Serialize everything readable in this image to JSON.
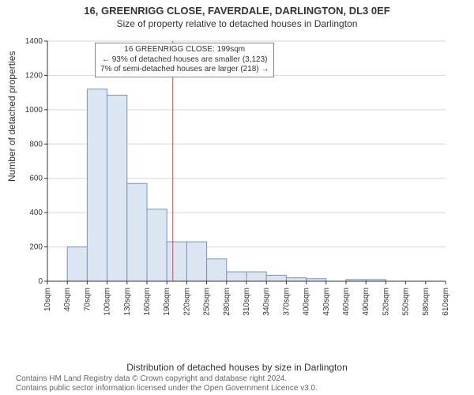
{
  "title_main": "16, GREENRIGG CLOSE, FAVERDALE, DARLINGTON, DL3 0EF",
  "title_sub": "Size of property relative to detached houses in Darlington",
  "y_axis_label": "Number of detached properties",
  "x_axis_label": "Distribution of detached houses by size in Darlington",
  "copyright_line1": "Contains HM Land Registry data © Crown copyright and database right 2024.",
  "copyright_line2": "Contains public sector information licensed under the Open Government Licence v3.0.",
  "chart": {
    "type": "histogram",
    "ylim": [
      0,
      1400
    ],
    "ytick_step": 200,
    "yticks": [
      0,
      200,
      400,
      600,
      800,
      1000,
      1200,
      1400
    ],
    "xtick_labels": [
      "10sqm",
      "40sqm",
      "70sqm",
      "100sqm",
      "130sqm",
      "160sqm",
      "190sqm",
      "220sqm",
      "250sqm",
      "280sqm",
      "310sqm",
      "340sqm",
      "370sqm",
      "400sqm",
      "430sqm",
      "460sqm",
      "490sqm",
      "520sqm",
      "550sqm",
      "580sqm",
      "610sqm"
    ],
    "xtick_count": 21,
    "bars": [
      0,
      200,
      1120,
      1085,
      570,
      420,
      230,
      230,
      130,
      55,
      55,
      35,
      20,
      15,
      0,
      10,
      10,
      0,
      0,
      0,
      0
    ],
    "bar_fill": "#dce6f2",
    "bar_stroke": "#7a93b8",
    "bar_stroke_width": 1,
    "grid_color": "#d6d6d6",
    "axis_color": "#333333",
    "font_size_ticks": 10,
    "marker_line": {
      "value_sqm": 199,
      "color": "#e04040",
      "width": 1
    },
    "annotation": {
      "line1": "16 GREENRIGG CLOSE: 199sqm",
      "line2": "← 93% of detached houses are smaller (3,123)",
      "line3": "7% of semi-detached houses are larger (218) →",
      "border_color": "#888888",
      "bg_color": "#ffffff",
      "font_size": 10
    }
  },
  "colors": {
    "text": "#333333",
    "muted": "#666666",
    "background": "#ffffff"
  }
}
